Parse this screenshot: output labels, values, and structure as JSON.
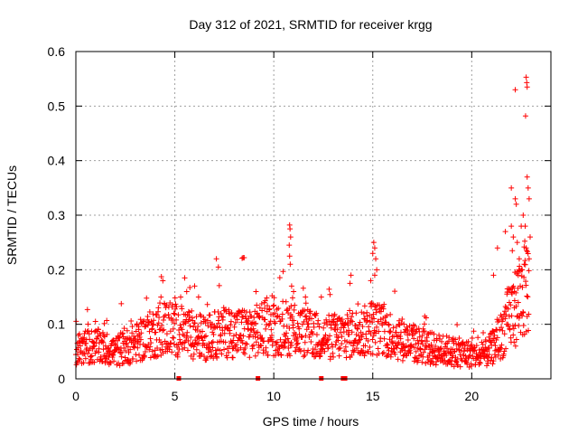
{
  "chart_data": {
    "type": "scatter",
    "title": "Day 312 of 2021, SRMTID for receiver krgg",
    "xlabel": "GPS time / hours",
    "ylabel": "SRMTID / TECUs",
    "xlim": [
      0,
      24
    ],
    "ylim": [
      0,
      0.6
    ],
    "xticks": [
      0,
      5,
      10,
      15,
      20
    ],
    "xtick_labels": [
      "0",
      "5",
      "10",
      "15",
      "20"
    ],
    "yticks": [
      0,
      0.1,
      0.2,
      0.3,
      0.4,
      0.5,
      0.6
    ],
    "ytick_labels": [
      "0",
      "0.1",
      "0.2",
      "0.3",
      "0.4",
      "0.5",
      "0.6"
    ],
    "grid": true,
    "marker": "plus",
    "color": "#ff0000",
    "series": [
      {
        "name": "SRMTID",
        "baseline": [
          [
            0.0,
            0.055
          ],
          [
            1.0,
            0.06
          ],
          [
            2.0,
            0.05
          ],
          [
            3.0,
            0.065
          ],
          [
            4.0,
            0.085
          ],
          [
            4.5,
            0.095
          ],
          [
            5.5,
            0.085
          ],
          [
            6.5,
            0.075
          ],
          [
            7.5,
            0.085
          ],
          [
            8.5,
            0.085
          ],
          [
            9.5,
            0.09
          ],
          [
            10.5,
            0.095
          ],
          [
            11.5,
            0.085
          ],
          [
            12.5,
            0.075
          ],
          [
            13.5,
            0.08
          ],
          [
            14.5,
            0.085
          ],
          [
            15.0,
            0.095
          ],
          [
            16.0,
            0.08
          ],
          [
            17.0,
            0.065
          ],
          [
            18.0,
            0.055
          ],
          [
            19.0,
            0.05
          ],
          [
            20.0,
            0.045
          ],
          [
            20.5,
            0.04
          ],
          [
            21.0,
            0.055
          ],
          [
            21.5,
            0.08
          ],
          [
            22.0,
            0.12
          ],
          [
            22.5,
            0.15
          ],
          [
            22.9,
            0.18
          ]
        ],
        "outliers": [
          [
            8.45,
            0.222
          ],
          [
            8.5,
            0.222
          ],
          [
            8.4,
            0.221
          ],
          [
            7.1,
            0.22
          ],
          [
            7.2,
            0.205
          ],
          [
            10.8,
            0.282
          ],
          [
            10.82,
            0.275
          ],
          [
            10.85,
            0.26
          ],
          [
            10.78,
            0.245
          ],
          [
            10.8,
            0.225
          ],
          [
            10.83,
            0.21
          ],
          [
            10.9,
            0.17
          ],
          [
            11.0,
            0.16
          ],
          [
            15.05,
            0.25
          ],
          [
            15.1,
            0.24
          ],
          [
            15.0,
            0.23
          ],
          [
            15.15,
            0.22
          ],
          [
            15.2,
            0.2
          ],
          [
            15.1,
            0.19
          ],
          [
            14.9,
            0.18
          ],
          [
            13.9,
            0.19
          ],
          [
            13.85,
            0.175
          ],
          [
            5.5,
            0.185
          ],
          [
            5.6,
            0.16
          ],
          [
            4.3,
            0.15
          ],
          [
            6.2,
            0.15
          ],
          [
            6.0,
            0.17
          ],
          [
            9.1,
            0.16
          ],
          [
            12.4,
            0.15
          ],
          [
            11.6,
            0.15
          ],
          [
            21.3,
            0.24
          ],
          [
            21.1,
            0.19
          ],
          [
            21.7,
            0.27
          ],
          [
            22.0,
            0.28
          ],
          [
            22.1,
            0.26
          ],
          [
            22.2,
            0.33
          ],
          [
            22.25,
            0.32
          ],
          [
            22.3,
            0.25
          ],
          [
            22.4,
            0.22
          ],
          [
            22.5,
            0.28
          ],
          [
            22.6,
            0.3
          ],
          [
            22.7,
            0.28
          ],
          [
            22.8,
            0.37
          ],
          [
            22.85,
            0.35
          ],
          [
            22.9,
            0.33
          ],
          [
            22.75,
            0.24
          ],
          [
            22.65,
            0.21
          ],
          [
            22.55,
            0.2
          ],
          [
            22.45,
            0.17
          ],
          [
            22.35,
            0.19
          ],
          [
            22.15,
            0.16
          ],
          [
            21.9,
            0.14
          ],
          [
            21.8,
            0.165
          ],
          [
            22.95,
            0.26
          ],
          [
            22.9,
            0.22
          ],
          [
            22.05,
            0.235
          ],
          [
            22.0,
            0.35
          ],
          [
            22.2,
            0.53
          ],
          [
            22.75,
            0.553
          ],
          [
            22.78,
            0.543
          ],
          [
            22.8,
            0.535
          ],
          [
            22.72,
            0.482
          ]
        ]
      }
    ],
    "flag_markers_x": [
      5.2,
      9.2,
      12.4,
      13.5,
      13.6
    ]
  }
}
